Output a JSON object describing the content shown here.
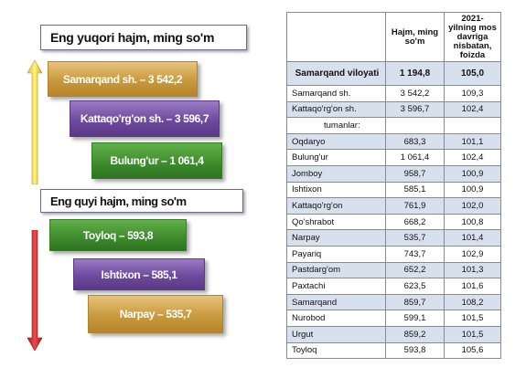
{
  "left": {
    "top_header": "Eng yuqori hajm, ming so'm",
    "bottom_header": "Eng quyi hajm, ming so'm",
    "top_bars": [
      {
        "label": "Samarqand  sh. – 3 542,2"
      },
      {
        "label": "Kattaqo'rg'on  sh. – 3 596,7"
      },
      {
        "label": "Bulung'ur – 1 061,4"
      }
    ],
    "bottom_bars": [
      {
        "label": "Toyloq – 593,8"
      },
      {
        "label": "Ishtixon – 585,1"
      },
      {
        "label": "Narpay – 535,7"
      }
    ],
    "colors": {
      "tan": "#c99a3d",
      "purple": "#6e4a9e",
      "green": "#3d8a2c",
      "arrow_top": "#f2e25a",
      "arrow_bottom": "#cc2a2a"
    }
  },
  "table": {
    "headers": [
      "",
      "Hajm, ming so'm",
      "2021- yilning mos davriga nisbatan, foizda"
    ],
    "region": {
      "name": "Samarqand viloyati",
      "volume": "1 194,8",
      "percent": "105,0"
    },
    "rows": [
      {
        "name": "Samarqand sh.",
        "volume": "3 542,2",
        "percent": "109,3"
      },
      {
        "name": "Kattaqo'rg'on sh.",
        "volume": "3 596,7",
        "percent": "102,4"
      },
      {
        "name": "tumanlar:",
        "volume": "",
        "percent": ""
      },
      {
        "name": "Oqdaryo",
        "volume": "683,3",
        "percent": "101,1"
      },
      {
        "name": "Bulung'ur",
        "volume": "1 061,4",
        "percent": "102,4"
      },
      {
        "name": "Jomboy",
        "volume": "958,7",
        "percent": "100,9"
      },
      {
        "name": "Ishtixon",
        "volume": "585,1",
        "percent": "100,9"
      },
      {
        "name": "Kattaqo'rg'on",
        "volume": "761,9",
        "percent": "102,0"
      },
      {
        "name": "Qo'shrabot",
        "volume": "668,2",
        "percent": "100,8"
      },
      {
        "name": "Narpay",
        "volume": "535,7",
        "percent": "101,4"
      },
      {
        "name": "Payariq",
        "volume": "743,7",
        "percent": "102,9"
      },
      {
        "name": "Pastdarg'om",
        "volume": "652,2",
        "percent": "101,3"
      },
      {
        "name": "Paxtachi",
        "volume": "623,5",
        "percent": "101,6"
      },
      {
        "name": "Samarqand",
        "volume": "859,7",
        "percent": "108,2"
      },
      {
        "name": "Nurobod",
        "volume": "599,1",
        "percent": "101,5"
      },
      {
        "name": "Urgut",
        "volume": "859,2",
        "percent": "101,5"
      },
      {
        "name": "Toyloq",
        "volume": "593,8",
        "percent": "105,6"
      }
    ]
  }
}
